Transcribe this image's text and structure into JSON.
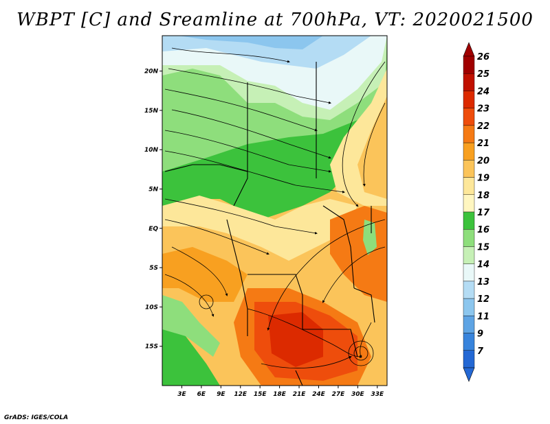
{
  "title": "WBPT [C] and Sreamline at 700hPa, VT: 2020021500",
  "credit": "GrADS: IGES/COLA",
  "map": {
    "lat_labels": [
      "20N",
      "15N",
      "10N",
      "5N",
      "EQ",
      "5S",
      "10S",
      "15S"
    ],
    "lon_labels": [
      "3E",
      "6E",
      "9E",
      "12E",
      "15E",
      "18E",
      "21E",
      "24E",
      "27E",
      "30E",
      "33E"
    ],
    "lat_range": [
      -20,
      24.5
    ],
    "lon_range": [
      0,
      34.5
    ]
  },
  "colorbar": {
    "labels": [
      "26",
      "25",
      "24",
      "23",
      "22",
      "21",
      "20",
      "19",
      "18",
      "17",
      "16",
      "15",
      "14",
      "13",
      "12",
      "11",
      "9",
      "7"
    ],
    "colors": [
      "#a00000",
      "#c01000",
      "#dc2a00",
      "#ee4d0c",
      "#f57a14",
      "#f8a020",
      "#fbc45a",
      "#fde79a",
      "#fff6c0",
      "#3cc23c",
      "#8ede7c",
      "#c6f0b6",
      "#e9f8f8",
      "#b4dcf4",
      "#8cc6ee",
      "#5ea4e4",
      "#3884dc",
      "#2468d4"
    ]
  }
}
